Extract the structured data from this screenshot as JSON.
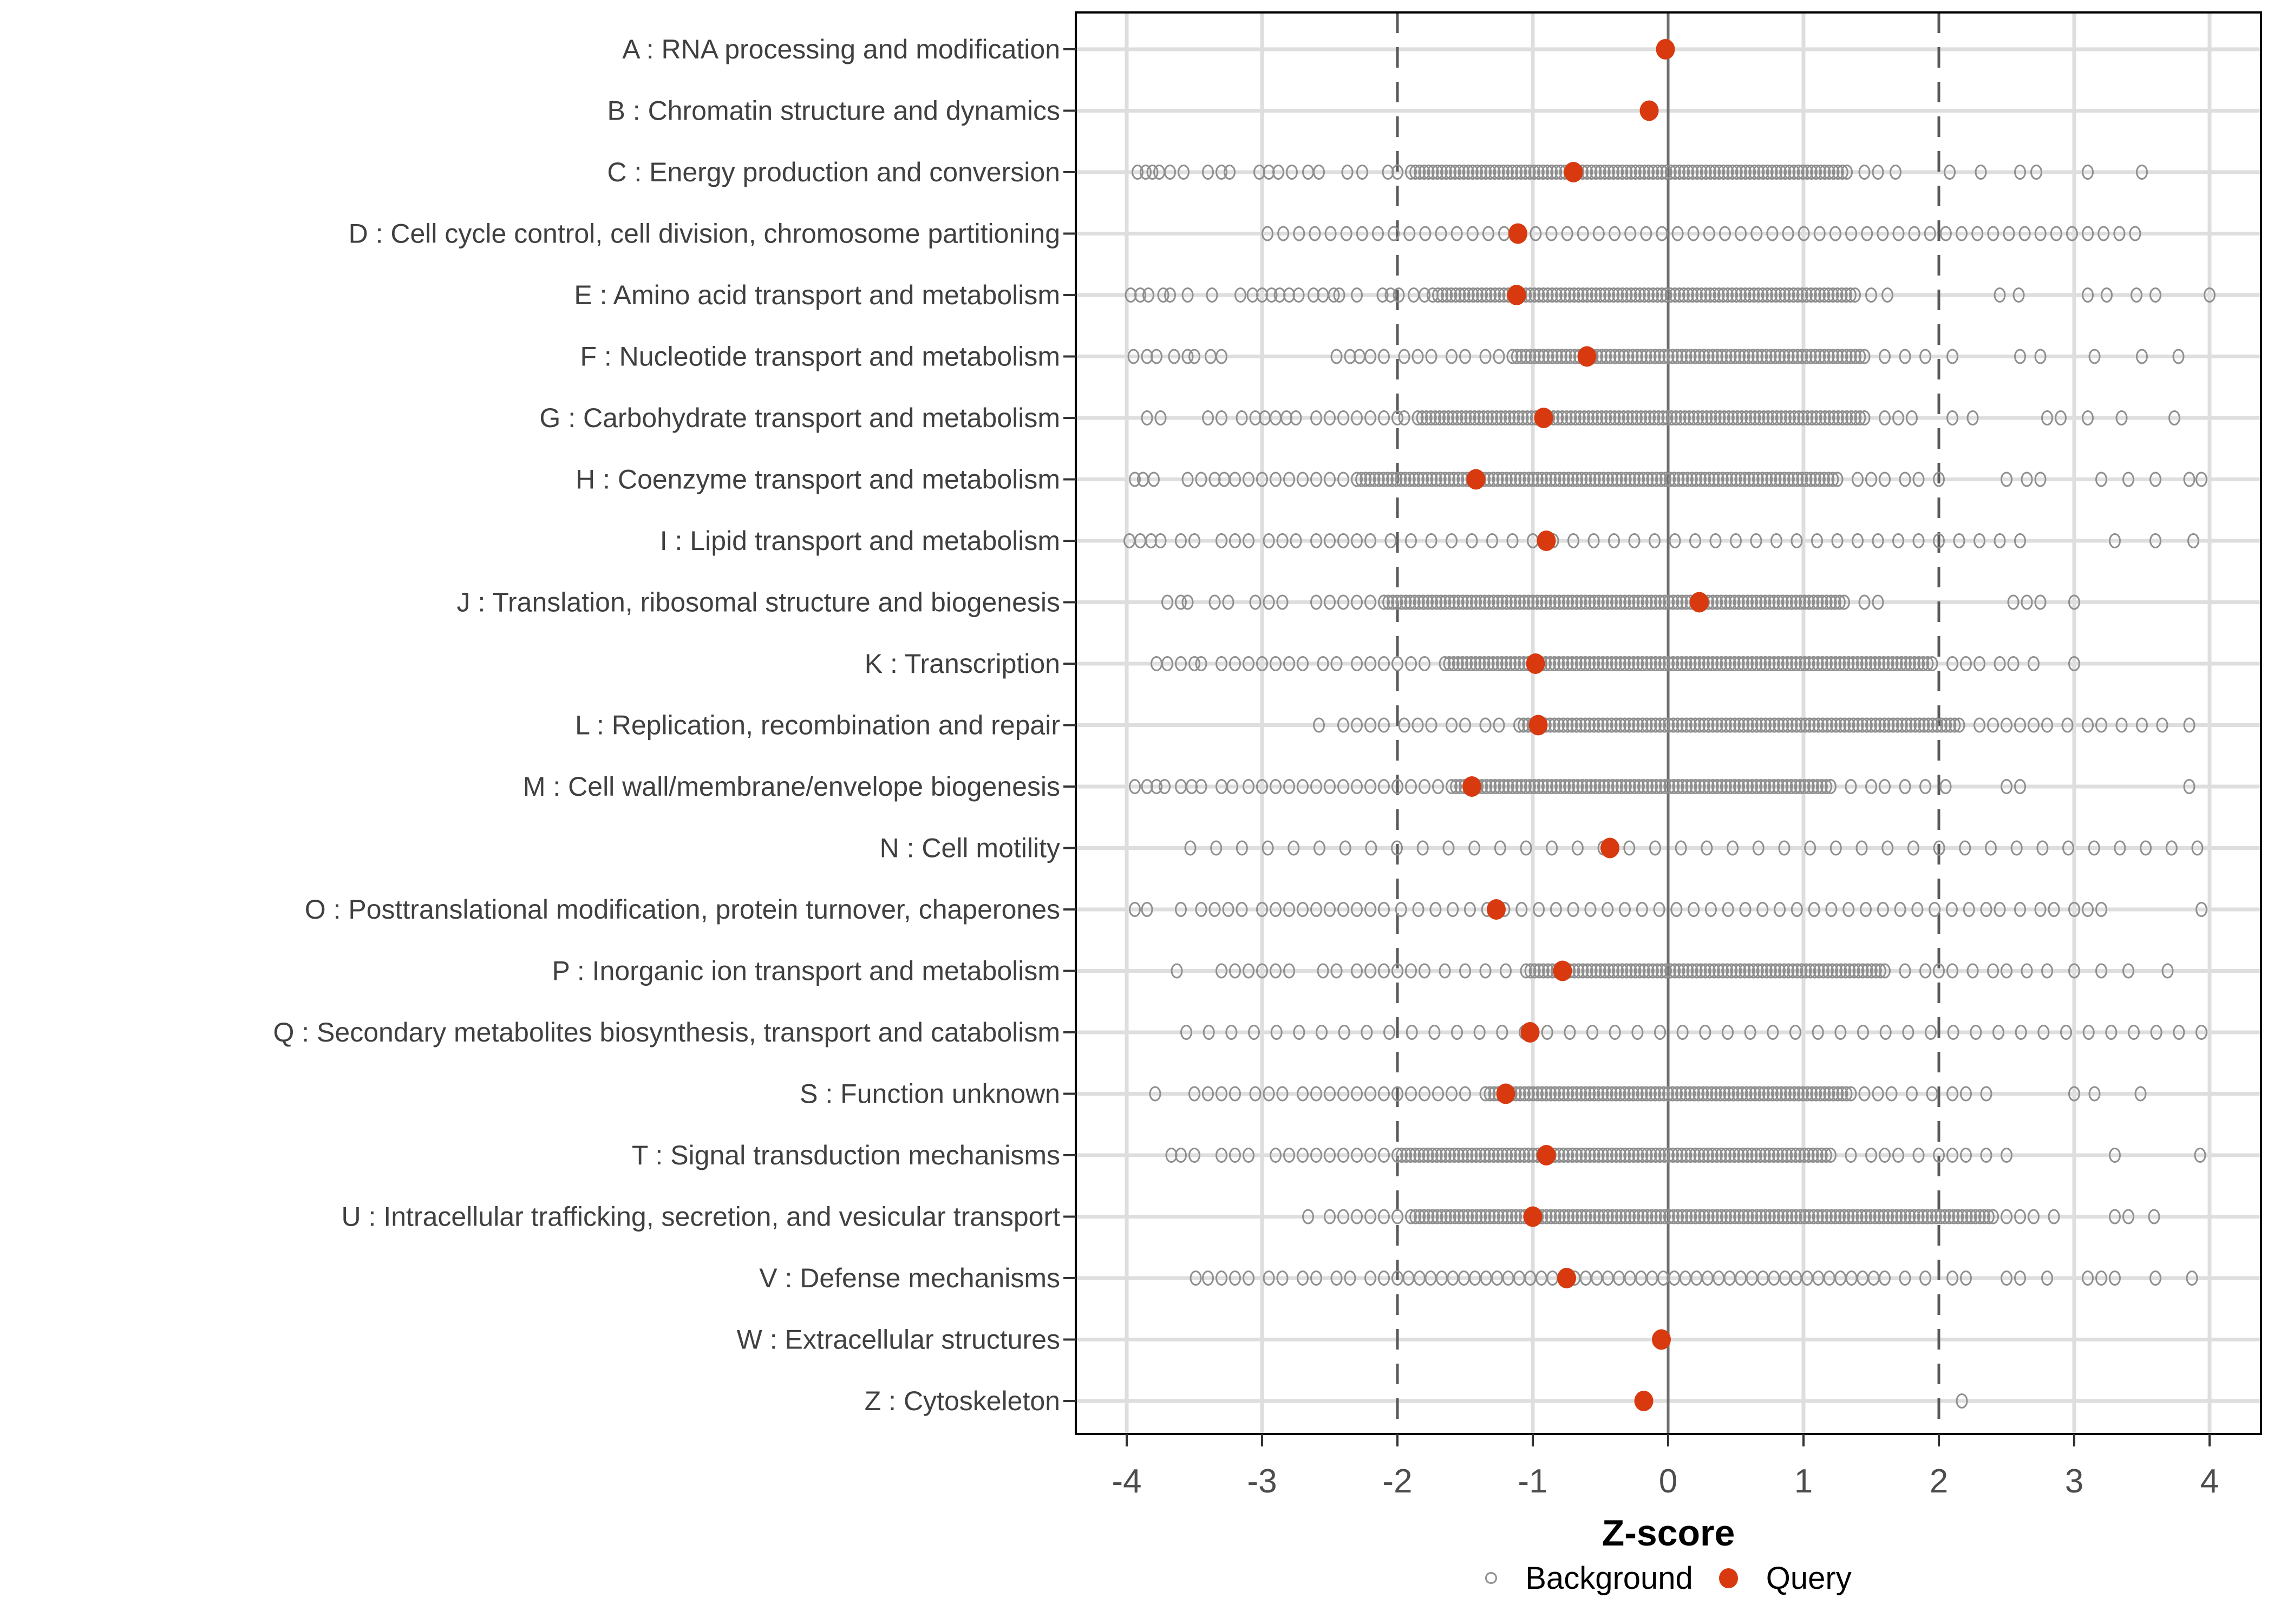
{
  "figure": {
    "background": "#FFFFFF"
  },
  "colors": {
    "query_red": "#D8390F",
    "bg_stroke": "#8F8F8F",
    "grid": "#DEDEDE",
    "dashed_line": "#595959",
    "zero_line": "#6E6E6E",
    "panel_border": "#000000",
    "tick_mark": "#333333",
    "axis_text": "#4D4D4D",
    "category_text": "#404040",
    "legend_text": "#000000"
  },
  "chart_data": {
    "type": "scatter",
    "variant": "horizontal-strip-dotplot",
    "title": "",
    "xlabel": "Z-score",
    "ylabel": "",
    "x_ticks": [
      -4,
      -3,
      -2,
      -1,
      0,
      1,
      2,
      3,
      4
    ],
    "x_range": [
      -4.38,
      4.38
    ],
    "grid": "on",
    "reference_lines": {
      "solid": [
        0
      ],
      "dashed": [
        -2,
        2
      ]
    },
    "legend": [
      {
        "label": "Background",
        "marker": "open-circle",
        "color": "#8F8F8F"
      },
      {
        "label": "Query",
        "marker": "filled-circle",
        "color": "#D8390F"
      }
    ],
    "legend_position": "bottom-center",
    "categories": [
      {
        "label": "A : RNA processing and modification",
        "query": -0.02,
        "background": {
          "band": null,
          "scatter": []
        }
      },
      {
        "label": "B : Chromatin structure and dynamics",
        "query": -0.14,
        "background": {
          "band": null,
          "scatter": []
        }
      },
      {
        "label": "C : Energy production and conversion",
        "query": -0.7,
        "background": {
          "band": {
            "from": -1.9,
            "to": 1.32,
            "n": 100
          },
          "scatter": [
            -3.92,
            -3.86,
            -3.81,
            -3.76,
            -3.68,
            -3.58,
            -3.4,
            -3.3,
            -3.24,
            -3.02,
            -2.95,
            -2.88,
            -2.78,
            -2.66,
            -2.58,
            -2.37,
            -2.26,
            -2.07,
            -2.0,
            1.45,
            1.55,
            1.68,
            2.08,
            2.31,
            2.6,
            2.72,
            3.1,
            3.5
          ]
        }
      },
      {
        "label": "D : Cell cycle control, cell division, chromosome partitioning",
        "query": -1.11,
        "background": {
          "band": {
            "from": -2.96,
            "to": 3.45,
            "n": 56
          },
          "scatter": []
        }
      },
      {
        "label": "E : Amino acid transport and metabolism",
        "query": -1.12,
        "background": {
          "band": {
            "from": -1.7,
            "to": 1.38,
            "n": 96
          },
          "scatter": [
            -3.97,
            -3.9,
            -3.84,
            -3.73,
            -3.68,
            -3.55,
            -3.37,
            -3.16,
            -3.07,
            -3.0,
            -2.93,
            -2.87,
            -2.8,
            -2.73,
            -2.62,
            -2.55,
            -2.47,
            -2.43,
            -2.3,
            -2.11,
            -2.05,
            -1.99,
            -1.88,
            -1.8,
            -1.74,
            1.5,
            1.62,
            2.45,
            2.59,
            3.1,
            3.24,
            3.46,
            3.6,
            4.0
          ]
        }
      },
      {
        "label": "F : Nucleotide transport and metabolism",
        "query": -0.6,
        "background": {
          "band": {
            "from": -1.15,
            "to": 1.45,
            "n": 80
          },
          "scatter": [
            -3.95,
            -3.85,
            -3.78,
            -3.65,
            -3.55,
            -3.5,
            -3.38,
            -3.3,
            -2.45,
            -2.35,
            -2.28,
            -2.2,
            -2.1,
            -1.95,
            -1.85,
            -1.75,
            -1.6,
            -1.5,
            -1.35,
            -1.25,
            1.6,
            1.75,
            1.9,
            2.1,
            2.6,
            2.75,
            3.15,
            3.5,
            3.77
          ]
        }
      },
      {
        "label": "G : Carbohydrate transport and metabolism",
        "query": -0.92,
        "background": {
          "band": {
            "from": -1.85,
            "to": 1.45,
            "n": 103
          },
          "scatter": [
            -3.85,
            -3.75,
            -3.4,
            -3.3,
            -3.15,
            -3.05,
            -2.98,
            -2.9,
            -2.82,
            -2.75,
            -2.6,
            -2.5,
            -2.4,
            -2.3,
            -2.2,
            -2.1,
            -2.0,
            -1.95,
            1.6,
            1.7,
            1.8,
            2.1,
            2.25,
            2.8,
            2.9,
            3.1,
            3.35,
            3.74
          ]
        }
      },
      {
        "label": "H : Coenzyme transport and metabolism",
        "query": -1.42,
        "background": {
          "band": {
            "from": -2.3,
            "to": 1.25,
            "n": 110
          },
          "scatter": [
            -3.94,
            -3.88,
            -3.8,
            -3.55,
            -3.45,
            -3.35,
            -3.28,
            -3.2,
            -3.1,
            -3.0,
            -2.9,
            -2.8,
            -2.7,
            -2.6,
            -2.5,
            -2.4,
            1.4,
            1.5,
            1.6,
            1.75,
            1.85,
            2.0,
            2.5,
            2.65,
            2.75,
            3.2,
            3.4,
            3.6,
            3.85,
            3.94
          ]
        }
      },
      {
        "label": "I : Lipid transport and metabolism",
        "query": -0.9,
        "background": {
          "band": {
            "from": -2.05,
            "to": 2.3,
            "n": 30
          },
          "scatter": [
            -3.98,
            -3.9,
            -3.82,
            -3.75,
            -3.6,
            -3.5,
            -3.3,
            -3.2,
            -3.1,
            -2.95,
            -2.85,
            -2.75,
            -2.6,
            -2.5,
            -2.4,
            -2.3,
            -2.2,
            2.45,
            2.6,
            3.3,
            3.6,
            3.88
          ]
        }
      },
      {
        "label": "J : Translation, ribosomal structure and biogenesis",
        "query": 0.23,
        "background": {
          "band": {
            "from": -2.1,
            "to": 1.3,
            "n": 106
          },
          "scatter": [
            -3.7,
            -3.6,
            -3.55,
            -3.35,
            -3.25,
            -3.05,
            -2.95,
            -2.85,
            -2.6,
            -2.5,
            -2.4,
            -2.3,
            -2.2,
            1.45,
            1.55,
            2.55,
            2.65,
            2.75,
            3.0
          ]
        }
      },
      {
        "label": "K : Transcription",
        "query": -0.98,
        "background": {
          "band": {
            "from": -1.65,
            "to": 1.95,
            "n": 112
          },
          "scatter": [
            -3.78,
            -3.7,
            -3.6,
            -3.5,
            -3.45,
            -3.3,
            -3.2,
            -3.1,
            -3.0,
            -2.9,
            -2.8,
            -2.7,
            -2.55,
            -2.45,
            -2.3,
            -2.2,
            -2.1,
            -2.0,
            -1.9,
            -1.8,
            2.1,
            2.2,
            2.3,
            2.45,
            2.55,
            2.7,
            3.0
          ]
        }
      },
      {
        "label": "L : Replication, recombination and repair",
        "query": -0.96,
        "background": {
          "band": {
            "from": -1.1,
            "to": 2.15,
            "n": 101
          },
          "scatter": [
            -2.58,
            -2.4,
            -2.3,
            -2.2,
            -2.1,
            -1.95,
            -1.85,
            -1.75,
            -1.6,
            -1.5,
            -1.35,
            -1.25,
            2.3,
            2.4,
            2.5,
            2.6,
            2.7,
            2.8,
            2.95,
            3.1,
            3.2,
            3.35,
            3.5,
            3.65,
            3.85
          ]
        }
      },
      {
        "label": "M : Cell wall/membrane/envelope biogenesis",
        "query": -1.45,
        "background": {
          "band": {
            "from": -1.6,
            "to": 1.2,
            "n": 88
          },
          "scatter": [
            -3.94,
            -3.85,
            -3.78,
            -3.72,
            -3.6,
            -3.52,
            -3.45,
            -3.3,
            -3.22,
            -3.1,
            -3.0,
            -2.9,
            -2.8,
            -2.7,
            -2.6,
            -2.5,
            -2.4,
            -2.3,
            -2.2,
            -2.1,
            -2.0,
            -1.9,
            -1.8,
            -1.7,
            1.35,
            1.5,
            1.6,
            1.75,
            1.9,
            2.05,
            2.5,
            2.6,
            3.85
          ]
        }
      },
      {
        "label": "N : Cell motility",
        "query": -0.43,
        "background": {
          "band": {
            "from": -3.53,
            "to": 3.91,
            "n": 40
          },
          "scatter": []
        }
      },
      {
        "label": "O : Posttranslational modification, protein turnover, chaperones",
        "query": -1.27,
        "background": {
          "band": {
            "from": -2.1,
            "to": 2.35,
            "n": 36
          },
          "scatter": [
            -3.94,
            -3.85,
            -3.6,
            -3.45,
            -3.35,
            -3.25,
            -3.15,
            -3.0,
            -2.9,
            -2.8,
            -2.7,
            -2.6,
            -2.5,
            -2.4,
            -2.3,
            -2.2,
            2.45,
            2.6,
            2.75,
            2.85,
            3.0,
            3.1,
            3.2,
            3.94
          ]
        }
      },
      {
        "label": "P : Inorganic ion transport and metabolism",
        "query": -0.78,
        "background": {
          "band": {
            "from": -1.05,
            "to": 1.6,
            "n": 83
          },
          "scatter": [
            -3.63,
            -3.3,
            -3.2,
            -3.1,
            -3.0,
            -2.9,
            -2.8,
            -2.55,
            -2.45,
            -2.3,
            -2.2,
            -2.1,
            -2.0,
            -1.9,
            -1.8,
            -1.65,
            -1.5,
            -1.35,
            -1.2,
            1.75,
            1.9,
            2.0,
            2.1,
            2.25,
            2.4,
            2.5,
            2.65,
            2.8,
            3.0,
            3.2,
            3.4,
            3.69
          ]
        }
      },
      {
        "label": "Q : Secondary metabolites biosynthesis, transport and catabolism",
        "query": -1.02,
        "background": {
          "band": {
            "from": -3.56,
            "to": 3.94,
            "n": 46
          },
          "scatter": []
        }
      },
      {
        "label": "S : Function unknown",
        "query": -1.2,
        "background": {
          "band": {
            "from": -1.35,
            "to": 1.35,
            "n": 85
          },
          "scatter": [
            -3.79,
            -3.5,
            -3.4,
            -3.3,
            -3.2,
            -3.05,
            -2.95,
            -2.85,
            -2.7,
            -2.6,
            -2.5,
            -2.4,
            -2.3,
            -2.2,
            -2.1,
            -2.0,
            -1.9,
            -1.8,
            -1.7,
            -1.6,
            -1.5,
            1.45,
            1.55,
            1.65,
            1.8,
            1.95,
            2.1,
            2.2,
            2.35,
            3.0,
            3.15,
            3.49
          ]
        }
      },
      {
        "label": "T : Signal transduction mechanisms",
        "query": -0.9,
        "background": {
          "band": {
            "from": -2.0,
            "to": 1.2,
            "n": 100
          },
          "scatter": [
            -3.67,
            -3.6,
            -3.5,
            -3.3,
            -3.2,
            -3.1,
            -2.9,
            -2.8,
            -2.7,
            -2.6,
            -2.5,
            -2.4,
            -2.3,
            -2.2,
            -2.1,
            1.35,
            1.5,
            1.6,
            1.7,
            1.85,
            2.0,
            2.1,
            2.2,
            2.35,
            2.5,
            3.3,
            3.93
          ]
        }
      },
      {
        "label": "U : Intracellular trafficking, secretion, and vesicular transport",
        "query": -1.0,
        "background": {
          "band": {
            "from": -1.9,
            "to": 2.4,
            "n": 134
          },
          "scatter": [
            -2.66,
            -2.5,
            -2.4,
            -2.3,
            -2.2,
            -2.1,
            -2.0,
            2.5,
            2.6,
            2.7,
            2.85,
            3.3,
            3.4,
            3.59
          ]
        }
      },
      {
        "label": "V : Defense mechanisms",
        "query": -0.75,
        "background": {
          "band": {
            "from": -2.0,
            "to": 1.6,
            "n": 45
          },
          "scatter": [
            -3.49,
            -3.4,
            -3.3,
            -3.2,
            -3.1,
            -2.95,
            -2.85,
            -2.7,
            -2.6,
            -2.45,
            -2.35,
            -2.2,
            -2.1,
            1.75,
            1.9,
            2.1,
            2.2,
            2.5,
            2.6,
            2.8,
            3.1,
            3.2,
            3.3,
            3.6,
            3.87
          ]
        }
      },
      {
        "label": "W : Extracellular structures",
        "query": -0.05,
        "background": {
          "band": null,
          "scatter": []
        }
      },
      {
        "label": "Z : Cytoskeleton",
        "query": -0.18,
        "background": {
          "band": null,
          "scatter": [
            2.17
          ]
        }
      }
    ]
  }
}
